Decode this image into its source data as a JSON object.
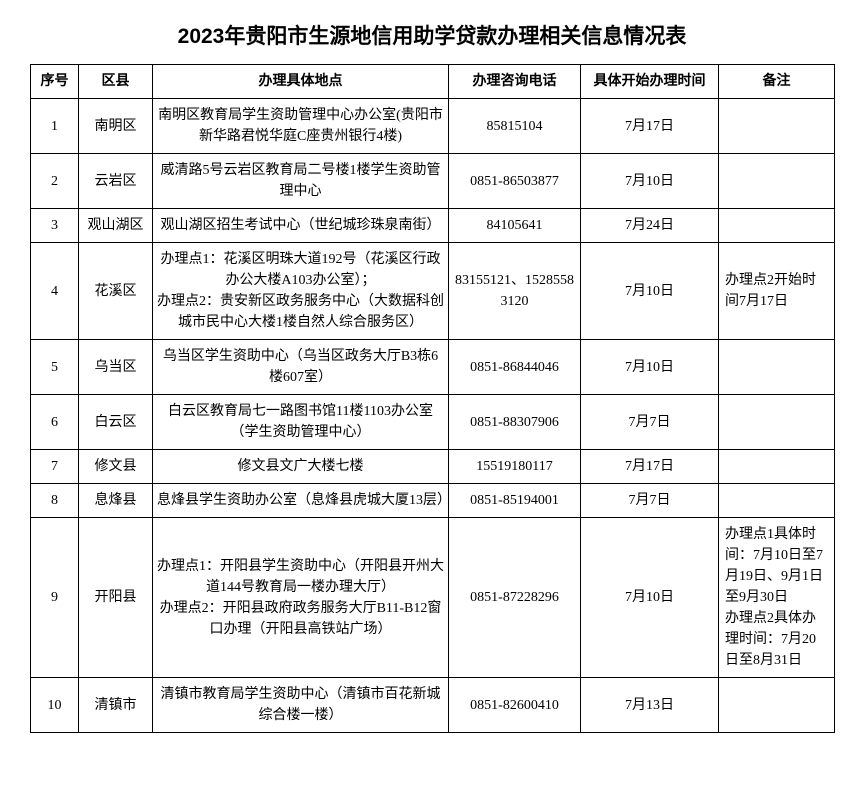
{
  "title": "2023年贵阳市生源地信用助学贷款办理相关信息情况表",
  "title_fontsize": 21,
  "body_fontsize": 14,
  "border_color": "#000000",
  "background_color": "#ffffff",
  "text_color": "#000000",
  "columns": {
    "seq": "序号",
    "district": "区县",
    "location": "办理具体地点",
    "phone": "办理咨询电话",
    "starttime": "具体开始办理时间",
    "remark": "备注"
  },
  "rows": [
    {
      "seq": "1",
      "district": "南明区",
      "location": "南明区教育局学生资助管理中心办公室(贵阳市新华路君悦华庭C座贵州银行4楼)",
      "phone": "85815104",
      "starttime": "7月17日",
      "remark": ""
    },
    {
      "seq": "2",
      "district": "云岩区",
      "location": "威清路5号云岩区教育局二号楼1楼学生资助管理中心",
      "phone": "0851-86503877",
      "starttime": "7月10日",
      "remark": ""
    },
    {
      "seq": "3",
      "district": "观山湖区",
      "location": "观山湖区招生考试中心（世纪城珍珠泉南街）",
      "phone": "84105641",
      "starttime": "7月24日",
      "remark": ""
    },
    {
      "seq": "4",
      "district": "花溪区",
      "location": "办理点1：花溪区明珠大道192号（花溪区行政办公大楼A103办公室）；\n办理点2：贵安新区政务服务中心（大数据科创城市民中心大楼1楼自然人综合服务区）",
      "phone": "83155121、15285583120",
      "starttime": "7月10日",
      "remark": "办理点2开始时间7月17日"
    },
    {
      "seq": "5",
      "district": "乌当区",
      "location": "乌当区学生资助中心（乌当区政务大厅B3栋6楼607室）",
      "phone": "0851-86844046",
      "starttime": "7月10日",
      "remark": ""
    },
    {
      "seq": "6",
      "district": "白云区",
      "location": "白云区教育局七一路图书馆11楼1103办公室（学生资助管理中心）",
      "phone": "0851-88307906",
      "starttime": "7月7日",
      "remark": ""
    },
    {
      "seq": "7",
      "district": "修文县",
      "location": "修文县文广大楼七楼",
      "phone": "15519180117",
      "starttime": "7月17日",
      "remark": ""
    },
    {
      "seq": "8",
      "district": "息烽县",
      "location": "息烽县学生资助办公室（息烽县虎城大厦13层）",
      "phone": "0851-85194001",
      "starttime": "7月7日",
      "remark": ""
    },
    {
      "seq": "9",
      "district": "开阳县",
      "location": "办理点1：开阳县学生资助中心（开阳县开州大道144号教育局一楼办理大厅）\n办理点2：开阳县政府政务服务大厅B11-B12窗口办理（开阳县高铁站广场）",
      "phone": "0851-87228296",
      "starttime": "7月10日",
      "remark": "办理点1具体时间：7月10日至7月19日、9月1日至9月30日\n办理点2具体办理时间：7月20日至8月31日"
    },
    {
      "seq": "10",
      "district": "清镇市",
      "location": "清镇市教育局学生资助中心（清镇市百花新城综合楼一楼）",
      "phone": "0851-82600410",
      "starttime": "7月13日",
      "remark": ""
    }
  ]
}
